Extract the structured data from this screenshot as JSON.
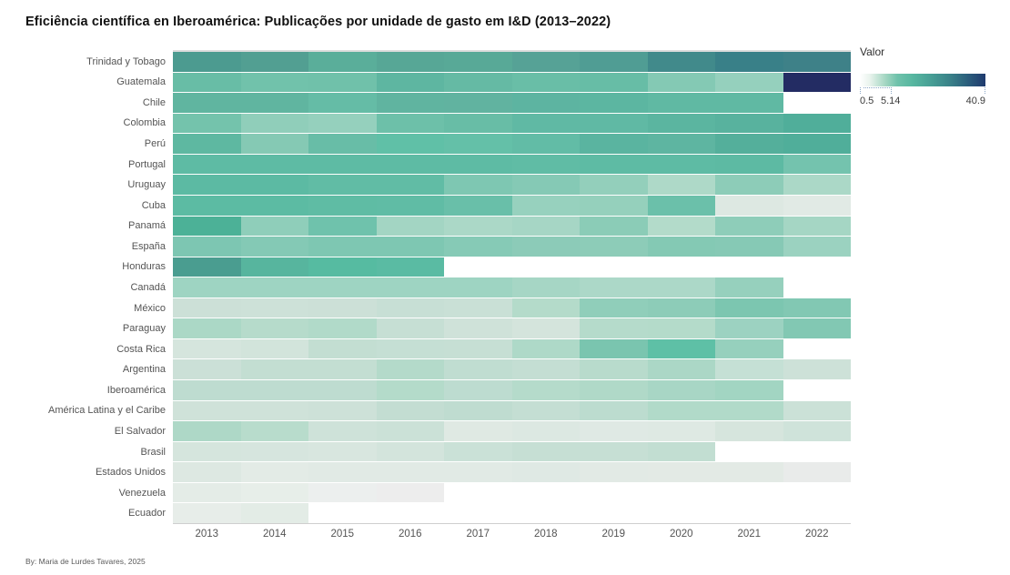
{
  "title": "Eficiência científica en Iberoamérica: Publicações por unidade de gasto em I&D (2013–2022)",
  "footer": "By: Maria de Lurdes Tavares, 2025",
  "legend": {
    "title": "Valor",
    "tick_min": "0.5",
    "tick_mid": "5.14",
    "tick_max": "40.9",
    "gradient_colors": [
      "#ffffff",
      "#a5d7c3",
      "#6fc2ab",
      "#57b7a0",
      "#479e95",
      "#3a8389",
      "#2b5e7c",
      "#1f3a6e"
    ]
  },
  "chart_data": {
    "type": "heatmap",
    "title": "Eficiência científica en Iberoamérica: Publicações por unidade de gasto em I&D (2013–2022)",
    "value_label": "Valor",
    "color_scale": {
      "min": 0.5,
      "mid": 5.14,
      "max": 40.9,
      "min_color": "#ffffff",
      "mid_color": "#6fc2ab",
      "max_color": "#1f3a6e"
    },
    "legend_position": "top-right",
    "grid": false,
    "x": [
      "2013",
      "2014",
      "2015",
      "2016",
      "2017",
      "2018",
      "2019",
      "2020",
      "2021",
      "2022"
    ],
    "y": [
      "Trinidad y Tobago",
      "Guatemala",
      "Chile",
      "Colombia",
      "Perú",
      "Portugal",
      "Uruguay",
      "Cuba",
      "Panamá",
      "España",
      "Honduras",
      "Canadá",
      "México",
      "Paraguay",
      "Costa Rica",
      "Argentina",
      "Iberoamérica",
      "América Latina y el Caribe",
      "El Salvador",
      "Brasil",
      "Estados Unidos",
      "Venezuela",
      "Ecuador"
    ],
    "values": [
      [
        13.0,
        12.4,
        9.2,
        10.6,
        10.4,
        11.2,
        12.6,
        17.5,
        21.0,
        20.3
      ],
      [
        5.2,
        4.6,
        4.7,
        6.3,
        5.5,
        5.1,
        5.2,
        3.6,
        2.9,
        40.9
      ],
      [
        6.6,
        6.6,
        5.6,
        6.6,
        6.5,
        6.6,
        6.5,
        6.2,
        6.2,
        null
      ],
      [
        4.5,
        3.1,
        2.9,
        4.9,
        5.2,
        6.2,
        6.2,
        6.6,
        7.0,
        8.2
      ],
      [
        6.4,
        3.6,
        5.1,
        5.9,
        5.8,
        5.7,
        6.6,
        6.4,
        7.5,
        8.2
      ],
      [
        6.1,
        6.1,
        6.1,
        6.1,
        6.1,
        6.0,
        6.1,
        6.1,
        6.2,
        4.6
      ],
      [
        6.3,
        6.3,
        5.8,
        5.8,
        4.1,
        3.7,
        3.0,
        2.1,
        3.2,
        2.2
      ],
      [
        6.2,
        6.2,
        6.0,
        5.9,
        5.0,
        2.8,
        2.9,
        5.0,
        0.8,
        0.7
      ],
      [
        8.5,
        3.1,
        4.8,
        2.5,
        2.2,
        2.3,
        3.3,
        1.9,
        3.2,
        2.4
      ],
      [
        4.2,
        3.7,
        4.1,
        4.1,
        3.6,
        3.4,
        3.3,
        3.6,
        3.6,
        2.7
      ],
      [
        13.2,
        7.0,
        6.2,
        6.1,
        null,
        null,
        null,
        null,
        null,
        null
      ],
      [
        2.6,
        2.6,
        2.6,
        2.6,
        2.6,
        2.3,
        2.1,
        2.1,
        2.9,
        null
      ],
      [
        1.2,
        1.1,
        1.2,
        1.3,
        1.3,
        1.9,
        3.1,
        3.3,
        4.2,
        3.9
      ],
      [
        2.1,
        1.8,
        2.0,
        1.4,
        1.1,
        1.0,
        1.9,
        1.9,
        2.7,
        3.9
      ],
      [
        0.9,
        1.0,
        1.5,
        1.4,
        1.4,
        2.1,
        4.2,
        6.3,
        2.9,
        null
      ],
      [
        1.2,
        1.5,
        1.5,
        1.9,
        1.5,
        1.4,
        1.8,
        2.2,
        1.4,
        1.2
      ],
      [
        1.6,
        1.6,
        1.6,
        1.9,
        1.7,
        1.9,
        2.0,
        2.3,
        2.5,
        null
      ],
      [
        1.1,
        1.1,
        1.2,
        1.4,
        1.6,
        1.4,
        1.6,
        1.9,
        1.9,
        1.2
      ],
      [
        2.1,
        1.8,
        1.1,
        1.2,
        0.7,
        0.8,
        0.7,
        0.7,
        0.9,
        1.1
      ],
      [
        0.9,
        0.9,
        0.85,
        0.95,
        1.2,
        1.4,
        1.4,
        1.5,
        null,
        null
      ],
      [
        0.7,
        0.6,
        0.62,
        0.62,
        0.62,
        0.7,
        0.6,
        0.6,
        0.6,
        0.55
      ],
      [
        0.55,
        0.52,
        0.5,
        0.5,
        null,
        null,
        null,
        null,
        null,
        null
      ],
      [
        0.52,
        0.58,
        null,
        null,
        null,
        null,
        null,
        null,
        null,
        null
      ]
    ],
    "colors": [
      [
        "#4c9b90",
        "#529f92",
        "#5aae9a",
        "#57a796",
        "#58a997",
        "#56a296",
        "#509d94",
        "#418a8b",
        "#398088",
        "#3e8188"
      ],
      [
        "#68bda6",
        "#71c2ab",
        "#70c1aa",
        "#5eb6a1",
        "#65baa4",
        "#69bea7",
        "#67bda6",
        "#84c9b4",
        "#95d0bd",
        "#232c63"
      ],
      [
        "#60b5a0",
        "#60b5a0",
        "#65bca6",
        "#60b4a0",
        "#61b3a0",
        "#5db4a1",
        "#5cb6a1",
        "#60b9a3",
        "#60b9a3",
        null
      ],
      [
        "#74c3ac",
        "#90ceba",
        "#95d0bd",
        "#6dc0a9",
        "#68bda6",
        "#60b9a4",
        "#60b9a4",
        "#5bb5a0",
        "#58b29e",
        "#50ae9a"
      ],
      [
        "#5eb8a1",
        "#85c9b4",
        "#68bda7",
        "#60c0a7",
        "#64c0a8",
        "#62bca6",
        "#5ab4a0",
        "#5eb5a1",
        "#54af9b",
        "#50ae9a"
      ],
      [
        "#5ebba4",
        "#5ebba4",
        "#5ebba4",
        "#5ebba4",
        "#5ebba4",
        "#60bca5",
        "#5ebba4",
        "#5ebba4",
        "#5dbaa3",
        "#74c3ae"
      ],
      [
        "#5cbaa3",
        "#5cbaa3",
        "#61bca5",
        "#61bca5",
        "#7ec7b2",
        "#85c9b5",
        "#93cfbb",
        "#aed9c8",
        "#8dccb8",
        "#abd8c7"
      ],
      [
        "#5cbba3",
        "#5cbba3",
        "#5fbca4",
        "#60bca5",
        "#69bfa9",
        "#97d1be",
        "#95d0bc",
        "#6bc0aa",
        "#dde8e2",
        "#e1eae5"
      ],
      [
        "#4cb197",
        "#8fceba",
        "#6fc2ac",
        "#a3d5c3",
        "#abd8c7",
        "#a6d6c5",
        "#8bccb7",
        "#b3dbca",
        "#8ecdb9",
        "#a5d6c4"
      ],
      [
        "#7dc6b2",
        "#84c9b5",
        "#7ec7b2",
        "#7ec7b2",
        "#86cab6",
        "#8ccbb8",
        "#8dccb8",
        "#84c9b4",
        "#86c9b5",
        "#9bd2c0"
      ],
      [
        "#4a9d90",
        "#57b59e",
        "#56bba1",
        "#5abba3",
        null,
        null,
        null,
        null,
        null,
        null
      ],
      [
        "#9ed4c2",
        "#9ed4c2",
        "#9ed4c2",
        "#9ed4c2",
        "#9ed4c2",
        "#a6d6c5",
        "#acd8c8",
        "#acd8c8",
        "#96d0bd",
        null
      ],
      [
        "#cce0d7",
        "#cde1d8",
        "#cce0d7",
        "#c7dfd5",
        "#c9e0d6",
        "#b4dbca",
        "#90ceba",
        "#8dccb8",
        "#7cc6b0",
        "#82c8b3"
      ],
      [
        "#abd8c6",
        "#b6dbcb",
        "#b1dac9",
        "#c6dfd4",
        "#cfe2d9",
        "#d4e4dc",
        "#b5dbcb",
        "#b4dbca",
        "#9cd2c1",
        "#82c8b3"
      ],
      [
        "#d5e5dd",
        "#d2e4db",
        "#c3ded2",
        "#c5dfd4",
        "#c6dfd4",
        "#aed9c8",
        "#7ac5af",
        "#5ec0a6",
        "#96d0bd",
        null
      ],
      [
        "#cbe0d7",
        "#c3ded2",
        "#c3ded2",
        "#b4daca",
        "#c0ddd1",
        "#c4ded3",
        "#b8dbcc",
        "#abd7c6",
        "#c5e0d5",
        "#cde1d8"
      ],
      [
        "#bedcd0",
        "#bedcd0",
        "#bedcd0",
        "#b4dbca",
        "#bddcd0",
        "#b5dbcb",
        "#b0d9c8",
        "#a8d6c5",
        "#a2d5c2",
        null
      ],
      [
        "#cfe2d9",
        "#cfe2d9",
        "#cde1d8",
        "#c3ddd2",
        "#bfdcd0",
        "#c4ded3",
        "#bcdccf",
        "#b1dac9",
        "#b1dac9",
        "#cbe1d7"
      ],
      [
        "#aed8c7",
        "#b8dccc",
        "#cee2d9",
        "#cbe1d7",
        "#dfe9e3",
        "#dce8e2",
        "#dfe9e4",
        "#dee9e3",
        "#d6e5dd",
        "#cfe3da"
      ],
      [
        "#d5e5dd",
        "#d6e5de",
        "#d8e6df",
        "#d3e4dc",
        "#cae1d7",
        "#c6dfd4",
        "#c6dfd4",
        "#c2ded2",
        null,
        null
      ],
      [
        "#dde8e2",
        "#e3ebe6",
        "#e1eae5",
        "#e1eae5",
        "#e1eae5",
        "#dfe9e4",
        "#e2eae5",
        "#e3eae5",
        "#e3eae5",
        "#e9ebea"
      ],
      [
        "#e4ece7",
        "#e7eee9",
        "#ecefee",
        "#ededed",
        null,
        null,
        null,
        null,
        null,
        null
      ],
      [
        "#e7ede9",
        "#e3ece6",
        null,
        null,
        null,
        null,
        null,
        null,
        null,
        null
      ]
    ]
  }
}
